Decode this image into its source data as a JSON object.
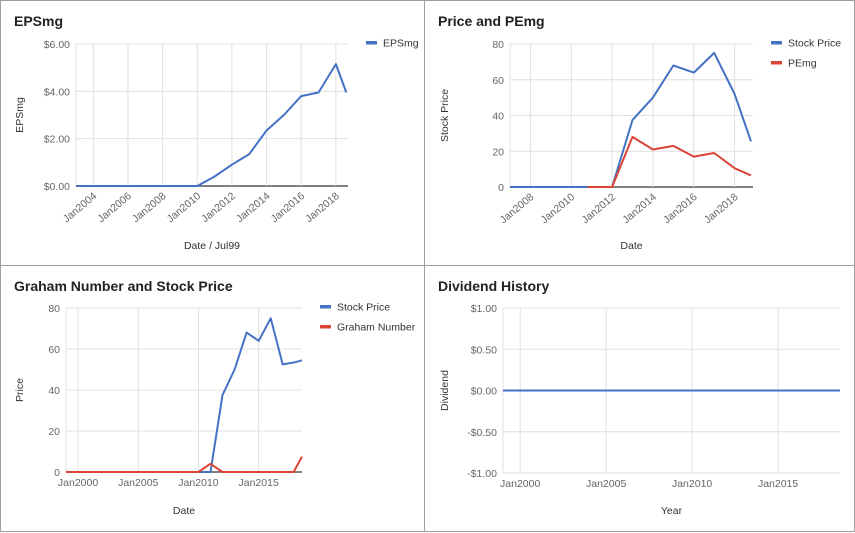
{
  "colors": {
    "blue": "#4472c4",
    "red": "#db4437",
    "grid": "#e0e0e0",
    "axis": "#333333",
    "tick": "#666666"
  },
  "chart_data": [
    {
      "id": "c1",
      "type": "line",
      "title": "EPSmg",
      "xlabel": "Date / Jul99",
      "ylabel": "EPSmg",
      "xlim": [
        2003,
        2018.7
      ],
      "ylim": [
        0,
        6
      ],
      "yticks": [
        0,
        2,
        4,
        6
      ],
      "ytick_labels": [
        "$0.00",
        "$2.00",
        "$4.00",
        "$6.00"
      ],
      "xticks": [
        2004,
        2006,
        2008,
        2010,
        2012,
        2014,
        2016,
        2018
      ],
      "xtick_labels": [
        "Jan2004",
        "Jan2006",
        "Jan2008",
        "Jan2010",
        "Jan2012",
        "Jan2014",
        "Jan2016",
        "Jan2018"
      ],
      "xtick_rotated": true,
      "legend": "top-right",
      "series": [
        {
          "name": "EPSmg",
          "color": "blue",
          "x": [
            2003,
            2004,
            2005,
            2006,
            2007,
            2008,
            2009,
            2010,
            2011,
            2012,
            2013,
            2014,
            2015,
            2016,
            2017,
            2018,
            2018.6
          ],
          "y": [
            0,
            0,
            0,
            0,
            0,
            0,
            0,
            0,
            0.4,
            0.9,
            1.35,
            2.35,
            3.0,
            3.8,
            3.95,
            5.15,
            3.95
          ]
        }
      ]
    },
    {
      "id": "c2",
      "type": "line",
      "title": "Price and PEmg",
      "xlabel": "Date",
      "ylabel": "Stock Price",
      "xlim": [
        2007,
        2018.9
      ],
      "ylim": [
        0,
        80
      ],
      "yticks": [
        0,
        20,
        40,
        60,
        80
      ],
      "ytick_labels": [
        "0",
        "20",
        "40",
        "60",
        "80"
      ],
      "xticks": [
        2008,
        2010,
        2012,
        2014,
        2016,
        2018
      ],
      "xtick_labels": [
        "Jan2008",
        "Jan2010",
        "Jan2012",
        "Jan2014",
        "Jan2016",
        "Jan2018"
      ],
      "xtick_rotated": true,
      "legend": "top-right",
      "series": [
        {
          "name": "Stock Price",
          "color": "blue",
          "x": [
            2007,
            2008,
            2009,
            2010,
            2011,
            2012,
            2013,
            2014,
            2015,
            2016,
            2017,
            2018,
            2018.8
          ],
          "y": [
            0,
            0,
            0,
            0,
            0,
            0,
            37.5,
            50,
            68,
            64,
            75,
            52,
            25.5
          ]
        },
        {
          "name": "PEmg",
          "color": "red",
          "x": [
            2010.8,
            2012,
            2013,
            2014,
            2015,
            2016,
            2017,
            2018,
            2018.8
          ],
          "y": [
            0,
            0,
            28,
            21,
            23,
            17,
            19,
            10.5,
            6.5
          ]
        }
      ]
    },
    {
      "id": "c3",
      "type": "line",
      "title": "Graham Number and Stock Price",
      "xlabel": "Date",
      "ylabel": "Price",
      "xlim": [
        1999,
        2018.6
      ],
      "ylim": [
        0,
        80
      ],
      "yticks": [
        0,
        20,
        40,
        60,
        80
      ],
      "ytick_labels": [
        "0",
        "20",
        "40",
        "60",
        "80"
      ],
      "xticks": [
        2000,
        2005,
        2010,
        2015
      ],
      "xtick_labels": [
        "Jan2000",
        "Jan2005",
        "Jan2010",
        "Jan2015"
      ],
      "xtick_rotated": false,
      "legend": "top-right",
      "series": [
        {
          "name": "Stock Price",
          "color": "blue",
          "x": [
            1999,
            2000,
            2002,
            2004,
            2006,
            2008,
            2010,
            2011,
            2012,
            2013,
            2014,
            2015,
            2016,
            2017,
            2018,
            2018.6
          ],
          "y": [
            0,
            0,
            0,
            0,
            0,
            0,
            0,
            0,
            37.5,
            50,
            68,
            64,
            75,
            52.5,
            53.5,
            54.5
          ]
        },
        {
          "name": "Graham Number",
          "color": "red",
          "x": [
            1999,
            2004,
            2010,
            2011,
            2012,
            2014,
            2016,
            2017.9,
            2018.6
          ],
          "y": [
            0,
            0,
            0,
            4,
            0,
            0,
            0,
            0,
            7.5
          ]
        }
      ]
    },
    {
      "id": "c4",
      "type": "line",
      "title": "Dividend History",
      "xlabel": "Year",
      "ylabel": "Dividend",
      "xlim": [
        1999,
        2018.6
      ],
      "ylim": [
        -1,
        1
      ],
      "yticks": [
        -1,
        -0.5,
        0,
        0.5,
        1
      ],
      "ytick_labels": [
        "-$1.00",
        "-$0.50",
        "$0.00",
        "$0.50",
        "$1.00"
      ],
      "xticks": [
        2000,
        2005,
        2010,
        2015
      ],
      "xtick_labels": [
        "Jan2000",
        "Jan2005",
        "Jan2010",
        "Jan2015"
      ],
      "xtick_rotated": false,
      "legend": "none",
      "series": [
        {
          "name": "",
          "color": "blue",
          "x": [
            1999,
            2018.6
          ],
          "y": [
            0,
            0
          ]
        }
      ]
    }
  ]
}
